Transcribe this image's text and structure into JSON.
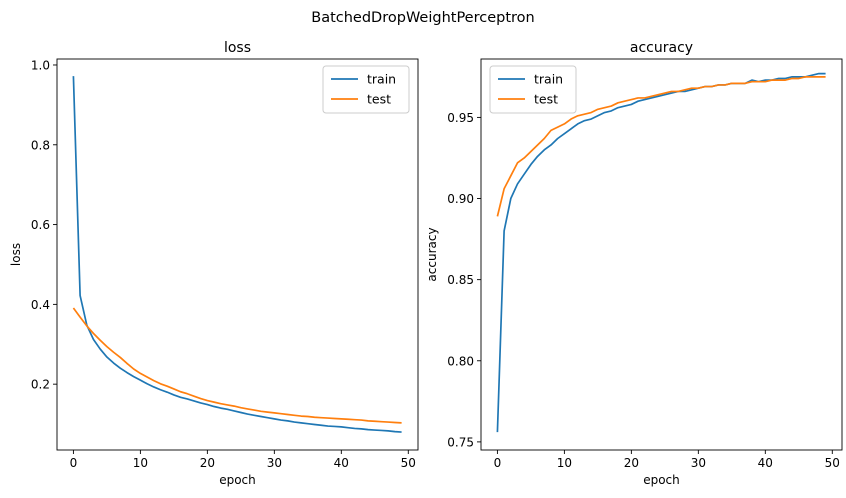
{
  "suptitle": "BatchedDropWeightPerceptron",
  "colors": {
    "train": "#1f77b4",
    "test": "#ff7f0e"
  },
  "chart_data": [
    {
      "type": "line",
      "title": "loss",
      "xlabel": "epoch",
      "ylabel": "loss",
      "xlim": [
        -2.45,
        51.45
      ],
      "ylim": [
        0.035,
        1.015
      ],
      "xticks": [
        0,
        10,
        20,
        30,
        40,
        50
      ],
      "yticks": [
        0.2,
        0.4,
        0.6,
        0.8,
        1.0
      ],
      "ytick_labels": [
        "0.2",
        "0.4",
        "0.6",
        "0.8",
        "1.0"
      ],
      "legend_loc": "upper right",
      "grid": false,
      "x": [
        0,
        1,
        2,
        3,
        4,
        5,
        6,
        7,
        8,
        9,
        10,
        11,
        12,
        13,
        14,
        15,
        16,
        17,
        18,
        19,
        20,
        21,
        22,
        23,
        24,
        25,
        26,
        27,
        28,
        29,
        30,
        31,
        32,
        33,
        34,
        35,
        36,
        37,
        38,
        39,
        40,
        41,
        42,
        43,
        44,
        45,
        46,
        47,
        48,
        49
      ],
      "series": [
        {
          "name": "train",
          "color_key": "train",
          "values": [
            0.972,
            0.422,
            0.348,
            0.312,
            0.288,
            0.268,
            0.253,
            0.24,
            0.229,
            0.219,
            0.21,
            0.201,
            0.193,
            0.186,
            0.18,
            0.173,
            0.167,
            0.163,
            0.158,
            0.153,
            0.149,
            0.144,
            0.14,
            0.137,
            0.133,
            0.129,
            0.125,
            0.122,
            0.119,
            0.116,
            0.113,
            0.11,
            0.108,
            0.105,
            0.103,
            0.101,
            0.099,
            0.097,
            0.095,
            0.094,
            0.093,
            0.091,
            0.089,
            0.088,
            0.086,
            0.085,
            0.084,
            0.083,
            0.081,
            0.08
          ]
        },
        {
          "name": "test",
          "color_key": "test",
          "values": [
            0.391,
            0.368,
            0.346,
            0.327,
            0.31,
            0.294,
            0.28,
            0.267,
            0.252,
            0.238,
            0.227,
            0.218,
            0.209,
            0.201,
            0.195,
            0.188,
            0.181,
            0.176,
            0.17,
            0.164,
            0.159,
            0.155,
            0.151,
            0.148,
            0.145,
            0.141,
            0.138,
            0.135,
            0.132,
            0.13,
            0.128,
            0.126,
            0.124,
            0.122,
            0.12,
            0.119,
            0.117,
            0.116,
            0.115,
            0.114,
            0.113,
            0.112,
            0.111,
            0.11,
            0.108,
            0.107,
            0.106,
            0.105,
            0.104,
            0.103
          ]
        }
      ]
    },
    {
      "type": "line",
      "title": "accuracy",
      "xlabel": "epoch",
      "ylabel": "accuracy",
      "xlim": [
        -2.45,
        51.45
      ],
      "ylim": [
        0.745,
        0.986
      ],
      "xticks": [
        0,
        10,
        20,
        30,
        40,
        50
      ],
      "yticks": [
        0.75,
        0.8,
        0.85,
        0.9,
        0.95
      ],
      "ytick_labels": [
        "0.75",
        "0.80",
        "0.85",
        "0.90",
        "0.95"
      ],
      "legend_loc": "upper left",
      "grid": false,
      "x": [
        0,
        1,
        2,
        3,
        4,
        5,
        6,
        7,
        8,
        9,
        10,
        11,
        12,
        13,
        14,
        15,
        16,
        17,
        18,
        19,
        20,
        21,
        22,
        23,
        24,
        25,
        26,
        27,
        28,
        29,
        30,
        31,
        32,
        33,
        34,
        35,
        36,
        37,
        38,
        39,
        40,
        41,
        42,
        43,
        44,
        45,
        46,
        47,
        48,
        49
      ],
      "series": [
        {
          "name": "train",
          "color_key": "train",
          "values": [
            0.756,
            0.88,
            0.9,
            0.909,
            0.915,
            0.921,
            0.926,
            0.93,
            0.933,
            0.937,
            0.94,
            0.943,
            0.946,
            0.948,
            0.949,
            0.951,
            0.953,
            0.954,
            0.956,
            0.957,
            0.958,
            0.96,
            0.961,
            0.962,
            0.963,
            0.964,
            0.965,
            0.966,
            0.966,
            0.967,
            0.968,
            0.969,
            0.969,
            0.97,
            0.97,
            0.971,
            0.971,
            0.971,
            0.973,
            0.972,
            0.973,
            0.973,
            0.974,
            0.974,
            0.975,
            0.975,
            0.975,
            0.976,
            0.977,
            0.977
          ]
        },
        {
          "name": "test",
          "color_key": "test",
          "values": [
            0.889,
            0.906,
            0.914,
            0.922,
            0.925,
            0.929,
            0.933,
            0.937,
            0.942,
            0.944,
            0.946,
            0.949,
            0.951,
            0.952,
            0.953,
            0.955,
            0.956,
            0.957,
            0.959,
            0.96,
            0.961,
            0.962,
            0.962,
            0.963,
            0.964,
            0.965,
            0.966,
            0.966,
            0.967,
            0.968,
            0.968,
            0.969,
            0.969,
            0.97,
            0.97,
            0.971,
            0.971,
            0.971,
            0.972,
            0.972,
            0.972,
            0.973,
            0.973,
            0.973,
            0.974,
            0.974,
            0.975,
            0.975,
            0.975,
            0.975
          ]
        }
      ]
    }
  ]
}
